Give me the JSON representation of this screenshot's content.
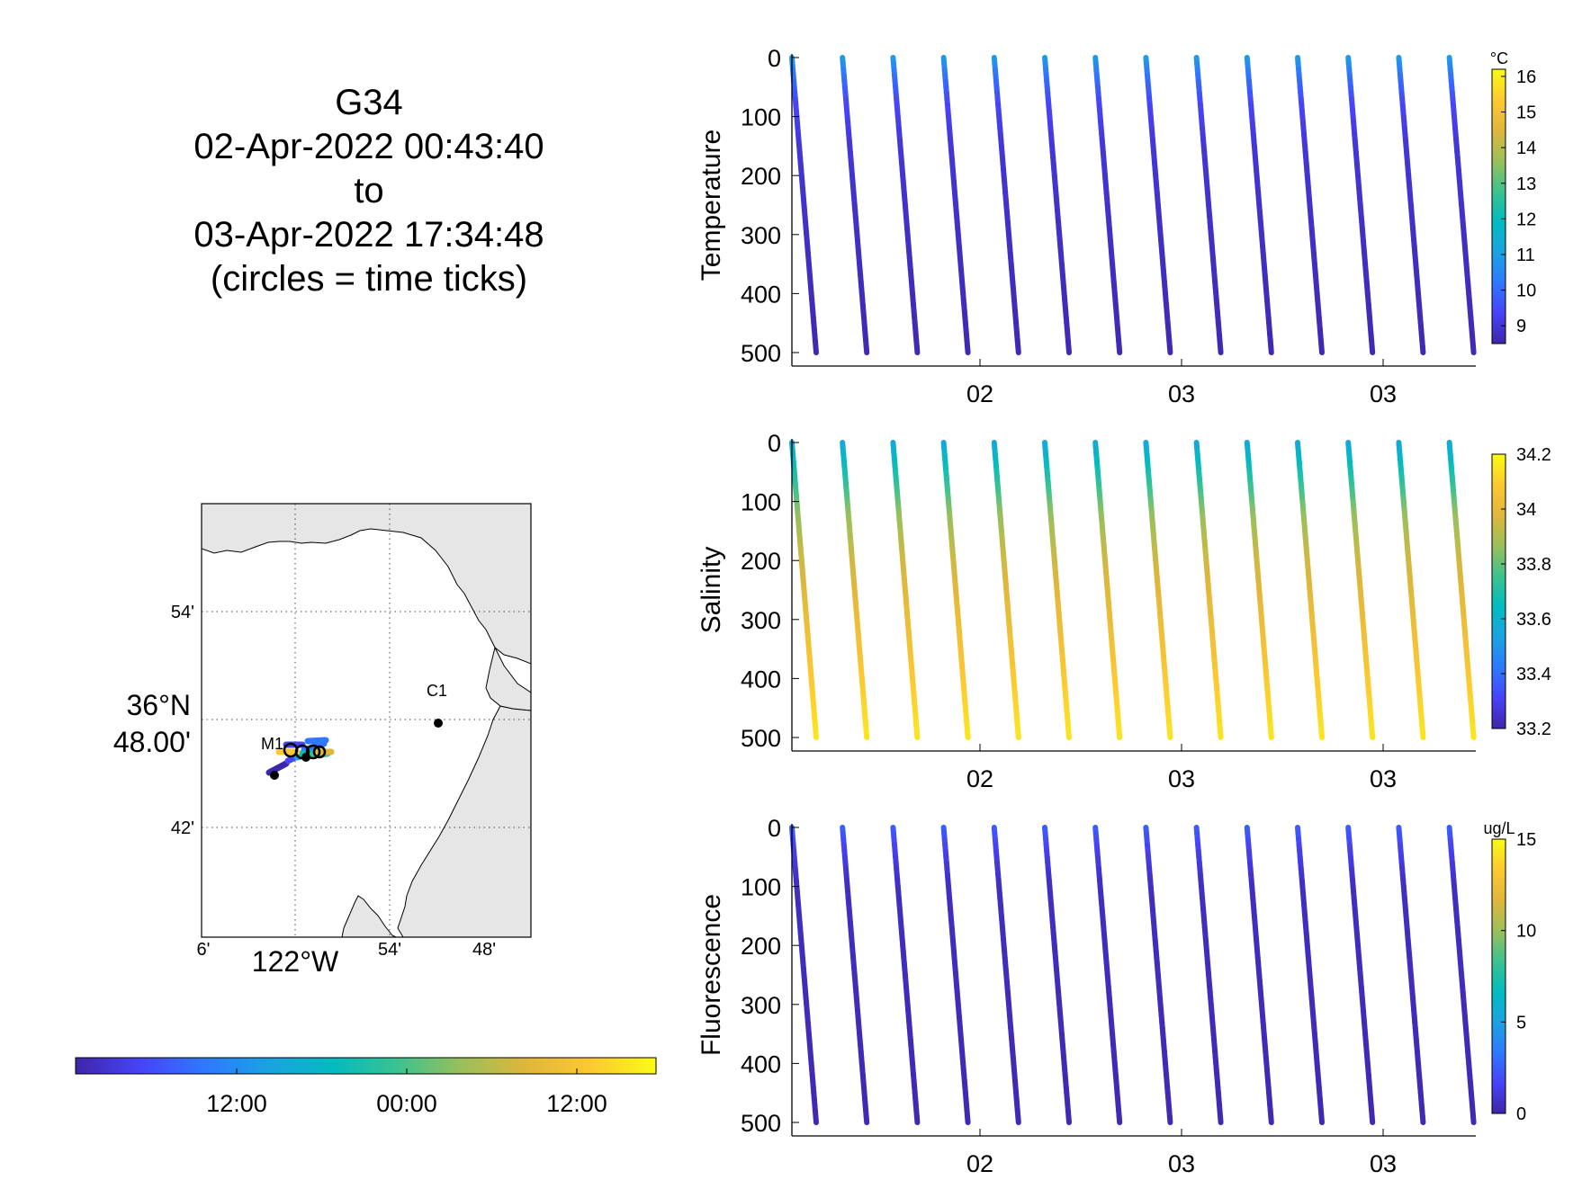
{
  "title": {
    "glider": "G34",
    "start": "02-Apr-2022 00:43:40",
    "to": "to",
    "end": "03-Apr-2022 17:34:48",
    "note": "(circles = time ticks)"
  },
  "map": {
    "lat_ticks": [
      "54'",
      "36°N",
      "48.00'",
      "42'"
    ],
    "lon_ticks": [
      "6'",
      "122°W",
      "54'",
      "48'"
    ],
    "stations": [
      "C1",
      "M1"
    ],
    "time_colorbar_ticks": [
      "12:00",
      "00:00",
      "12:00"
    ]
  },
  "chart_data": [
    {
      "type": "scatter",
      "ylabel": "Temperature",
      "colorbar_unit": "°C",
      "colorbar_ticks": [
        "16",
        "15",
        "14",
        "13",
        "12",
        "11",
        "10",
        "9"
      ],
      "clim": [
        8.5,
        16.2
      ],
      "ylim": [
        0,
        500
      ],
      "y_reversed": true,
      "y_ticks": [
        "0",
        "100",
        "200",
        "300",
        "400",
        "500"
      ],
      "x_ticks": [
        "02",
        "03",
        "03"
      ],
      "profiles": 14,
      "depth_max": 500,
      "color_vs_depth": [
        [
          0,
          11.0
        ],
        [
          30,
          10.2
        ],
        [
          80,
          9.4
        ],
        [
          150,
          9.0
        ],
        [
          300,
          8.8
        ],
        [
          500,
          8.6
        ]
      ]
    },
    {
      "type": "scatter",
      "ylabel": "Salinity",
      "colorbar_unit": "",
      "colorbar_ticks": [
        "34.2",
        "34",
        "33.8",
        "33.6",
        "33.4",
        "33.2"
      ],
      "clim": [
        33.2,
        34.2
      ],
      "ylim": [
        0,
        500
      ],
      "y_reversed": true,
      "y_ticks": [
        "0",
        "100",
        "200",
        "300",
        "400",
        "500"
      ],
      "x_ticks": [
        "02",
        "03",
        "03"
      ],
      "profiles": 14,
      "depth_max": 500,
      "color_vs_depth": [
        [
          0,
          33.55
        ],
        [
          60,
          33.7
        ],
        [
          120,
          33.85
        ],
        [
          200,
          33.95
        ],
        [
          350,
          34.05
        ],
        [
          500,
          34.15
        ]
      ]
    },
    {
      "type": "scatter",
      "ylabel": "Fluorescence",
      "colorbar_unit": "ug/L",
      "colorbar_ticks": [
        "15",
        "10",
        "5",
        "0"
      ],
      "clim": [
        0,
        15
      ],
      "ylim": [
        0,
        500
      ],
      "y_reversed": true,
      "y_ticks": [
        "0",
        "100",
        "200",
        "300",
        "400",
        "500"
      ],
      "x_ticks": [
        "02",
        "03",
        "03"
      ],
      "profiles": 14,
      "depth_max": 500,
      "color_vs_depth": [
        [
          0,
          2.5
        ],
        [
          40,
          1.5
        ],
        [
          100,
          0.5
        ],
        [
          500,
          0.2
        ]
      ]
    }
  ],
  "colors": {
    "parula": [
      "#3e26a8",
      "#4743f8",
      "#2f78ff",
      "#1aa3e0",
      "#03bbc0",
      "#3cc28f",
      "#9bbf5a",
      "#e0b63c",
      "#fdc931",
      "#f9fb15"
    ],
    "land": "#e6e6e6",
    "ocean": "#ffffff"
  }
}
